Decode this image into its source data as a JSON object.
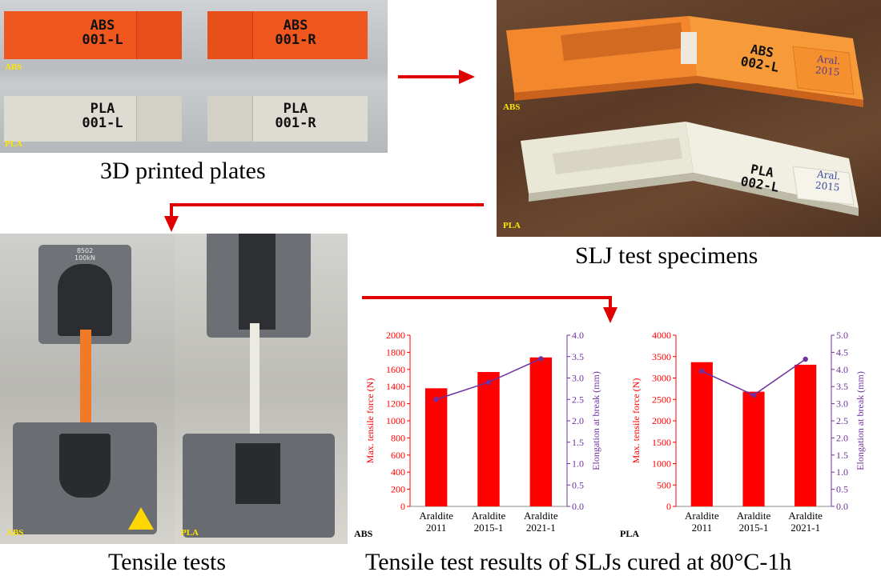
{
  "captions": {
    "printed_plates": "3D printed plates",
    "slj_specimens": "SLJ test specimens",
    "tensile_tests": "Tensile tests",
    "results": "Tensile test results of SLJs cured at 80°C-1h"
  },
  "plates": {
    "abs_tag": "ABS",
    "pla_tag": "PLA",
    "abs_left": [
      "ABS",
      "001-L"
    ],
    "abs_right": [
      "ABS",
      "001-R"
    ],
    "pla_left": [
      "PLA",
      "001-L"
    ],
    "pla_right": [
      "PLA",
      "001-R"
    ]
  },
  "specimens": {
    "abs_tag": "ABS",
    "pla_tag": "PLA",
    "abs_label": [
      "ABS",
      "002-L"
    ],
    "pla_label": [
      "PLA",
      "002-L"
    ],
    "abs_note": [
      "Aral.",
      "2015"
    ],
    "pla_note": [
      "Aral.",
      "2015"
    ]
  },
  "tests": {
    "abs_tag": "ABS",
    "pla_tag": "PLA",
    "machine_label": [
      "8502",
      "100kN"
    ]
  },
  "colors": {
    "bar": "#ff0000",
    "line": "#7030a0",
    "arrow": "#e00000",
    "abs_orange": "#f07a26",
    "pla_white": "#e8e6da"
  },
  "chart_data": [
    {
      "type": "bar",
      "panel_tag": "ABS",
      "categories": [
        "Araldite 2011",
        "Araldite 2015-1",
        "Araldite 2021-1"
      ],
      "series": [
        {
          "name": "Max. tensile force (N)",
          "values": [
            1380,
            1570,
            1740
          ],
          "axis": "left"
        },
        {
          "name": "Elongation at break (mm)",
          "values": [
            2.5,
            2.9,
            3.45
          ],
          "axis": "right",
          "type": "line"
        }
      ],
      "ylabel": "Max. tensile force (N)",
      "y2label": "Elongation at break (mm)",
      "ylim": [
        0,
        2000
      ],
      "y2lim": [
        0,
        4.0
      ],
      "yticks": [
        "0",
        "200",
        "400",
        "600",
        "800",
        "1000",
        "1200",
        "1400",
        "1600",
        "1800",
        "2000"
      ],
      "y2ticks": [
        "0.0",
        "0.5",
        "1.0",
        "1.5",
        "2.0",
        "2.5",
        "3.0",
        "3.5",
        "4.0"
      ],
      "grid": false
    },
    {
      "type": "bar",
      "panel_tag": "PLA",
      "categories": [
        "Araldite 2011",
        "Araldite 2015-1",
        "Araldite 2021-1"
      ],
      "series": [
        {
          "name": "Max. tensile force (N)",
          "values": [
            3370,
            2680,
            3310
          ],
          "axis": "left"
        },
        {
          "name": "Elongation at break (mm)",
          "values": [
            3.95,
            3.25,
            4.3
          ],
          "axis": "right",
          "type": "line"
        }
      ],
      "ylabel": "Max. tensile force (N)",
      "y2label": "Elongation at break (mm)",
      "ylim": [
        0,
        4000
      ],
      "y2lim": [
        0,
        5.0
      ],
      "yticks": [
        "0",
        "500",
        "1000",
        "1500",
        "2000",
        "2500",
        "3000",
        "3500",
        "4000"
      ],
      "y2ticks": [
        "0.0",
        "0.5",
        "1.0",
        "1.5",
        "2.0",
        "2.5",
        "3.0",
        "3.5",
        "4.0",
        "4.5",
        "5.0"
      ],
      "grid": false
    }
  ]
}
